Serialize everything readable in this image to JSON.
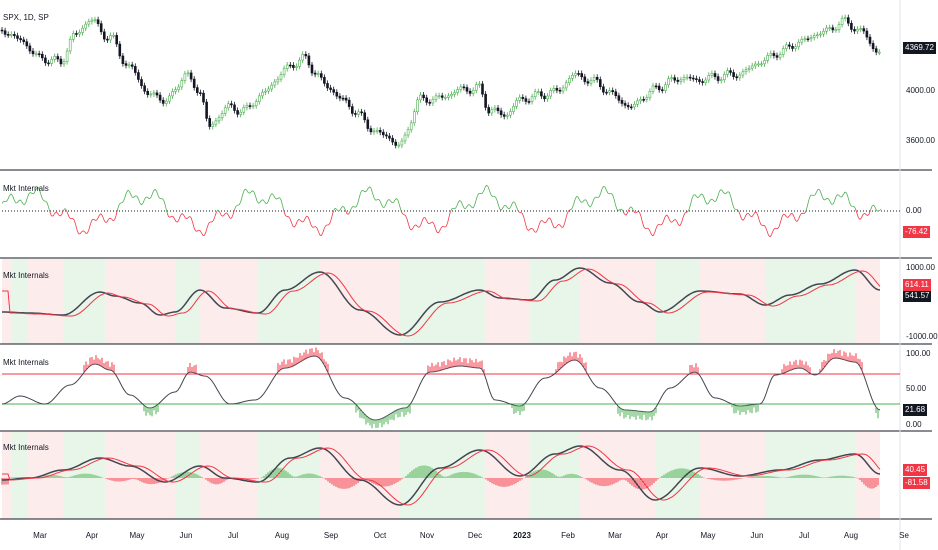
{
  "colors": {
    "up": "#26a69a",
    "green": "#4caf50",
    "red": "#f23645",
    "black": "#131722",
    "grey": "#434651",
    "green_bg": "#e8f5e9",
    "red_bg": "#fdecec"
  },
  "main_pane": {
    "title": "SPX, 1D, SP",
    "price_badge": "4369.72",
    "axis_labels": [
      "4000.00",
      "3600.00"
    ]
  },
  "pane_2": {
    "title": "Mkt Internals",
    "axis_labels": [
      "0.00"
    ],
    "badge": "-76.42"
  },
  "pane_3": {
    "title": "Mkt Internals",
    "axis_labels": [
      "1000.00",
      "-1000.00"
    ],
    "badge_red": "614.11",
    "badge_dark": "541.57"
  },
  "pane_4": {
    "title": "Mkt Internals",
    "axis_labels": [
      "100.00",
      "50.00",
      "0.00"
    ],
    "badge": "21.68"
  },
  "pane_5": {
    "title": "Mkt Internals",
    "badge_red": "40.45",
    "badge_dark": "-81.58"
  },
  "x_axis": {
    "labels": [
      "Mar",
      "Apr",
      "May",
      "Jun",
      "Jul",
      "Aug",
      "Sep",
      "Oct",
      "Nov",
      "Dec",
      "2023",
      "Feb",
      "Mar",
      "Apr",
      "May",
      "Jun",
      "Jul",
      "Aug",
      "Se"
    ],
    "bold_label": "2023"
  }
}
